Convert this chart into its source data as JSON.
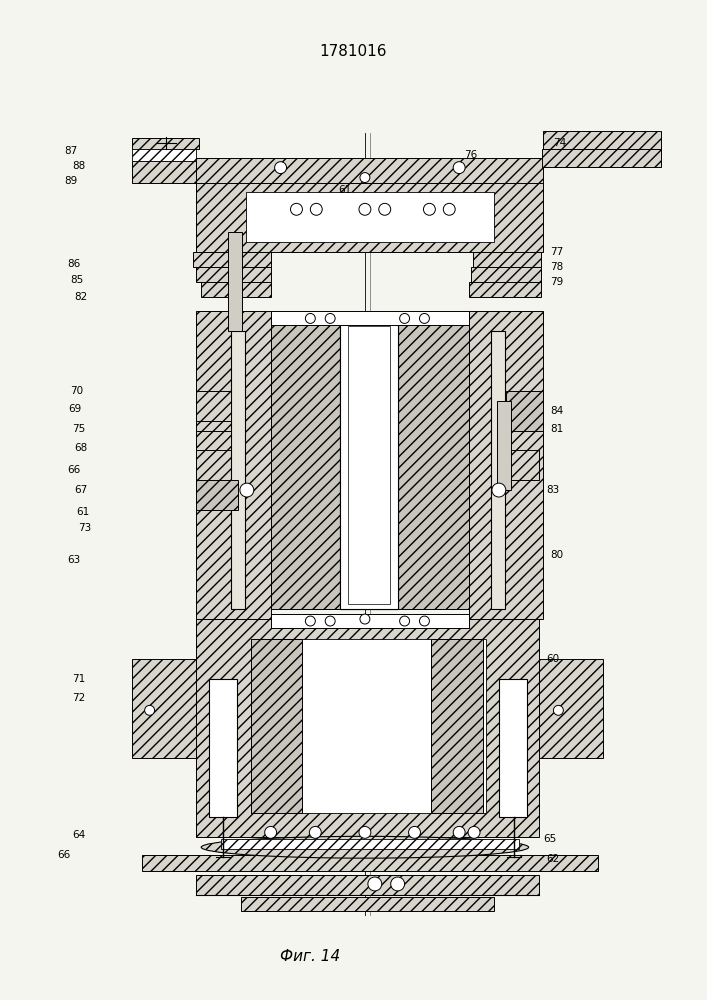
{
  "title": "1781016",
  "fig_label": "Фиг. 14",
  "bg_color": "#f5f5f0",
  "figsize": [
    7.07,
    10.0
  ],
  "dpi": 100,
  "hatch_density": "///",
  "lw_main": 0.8,
  "lw_thin": 0.5
}
